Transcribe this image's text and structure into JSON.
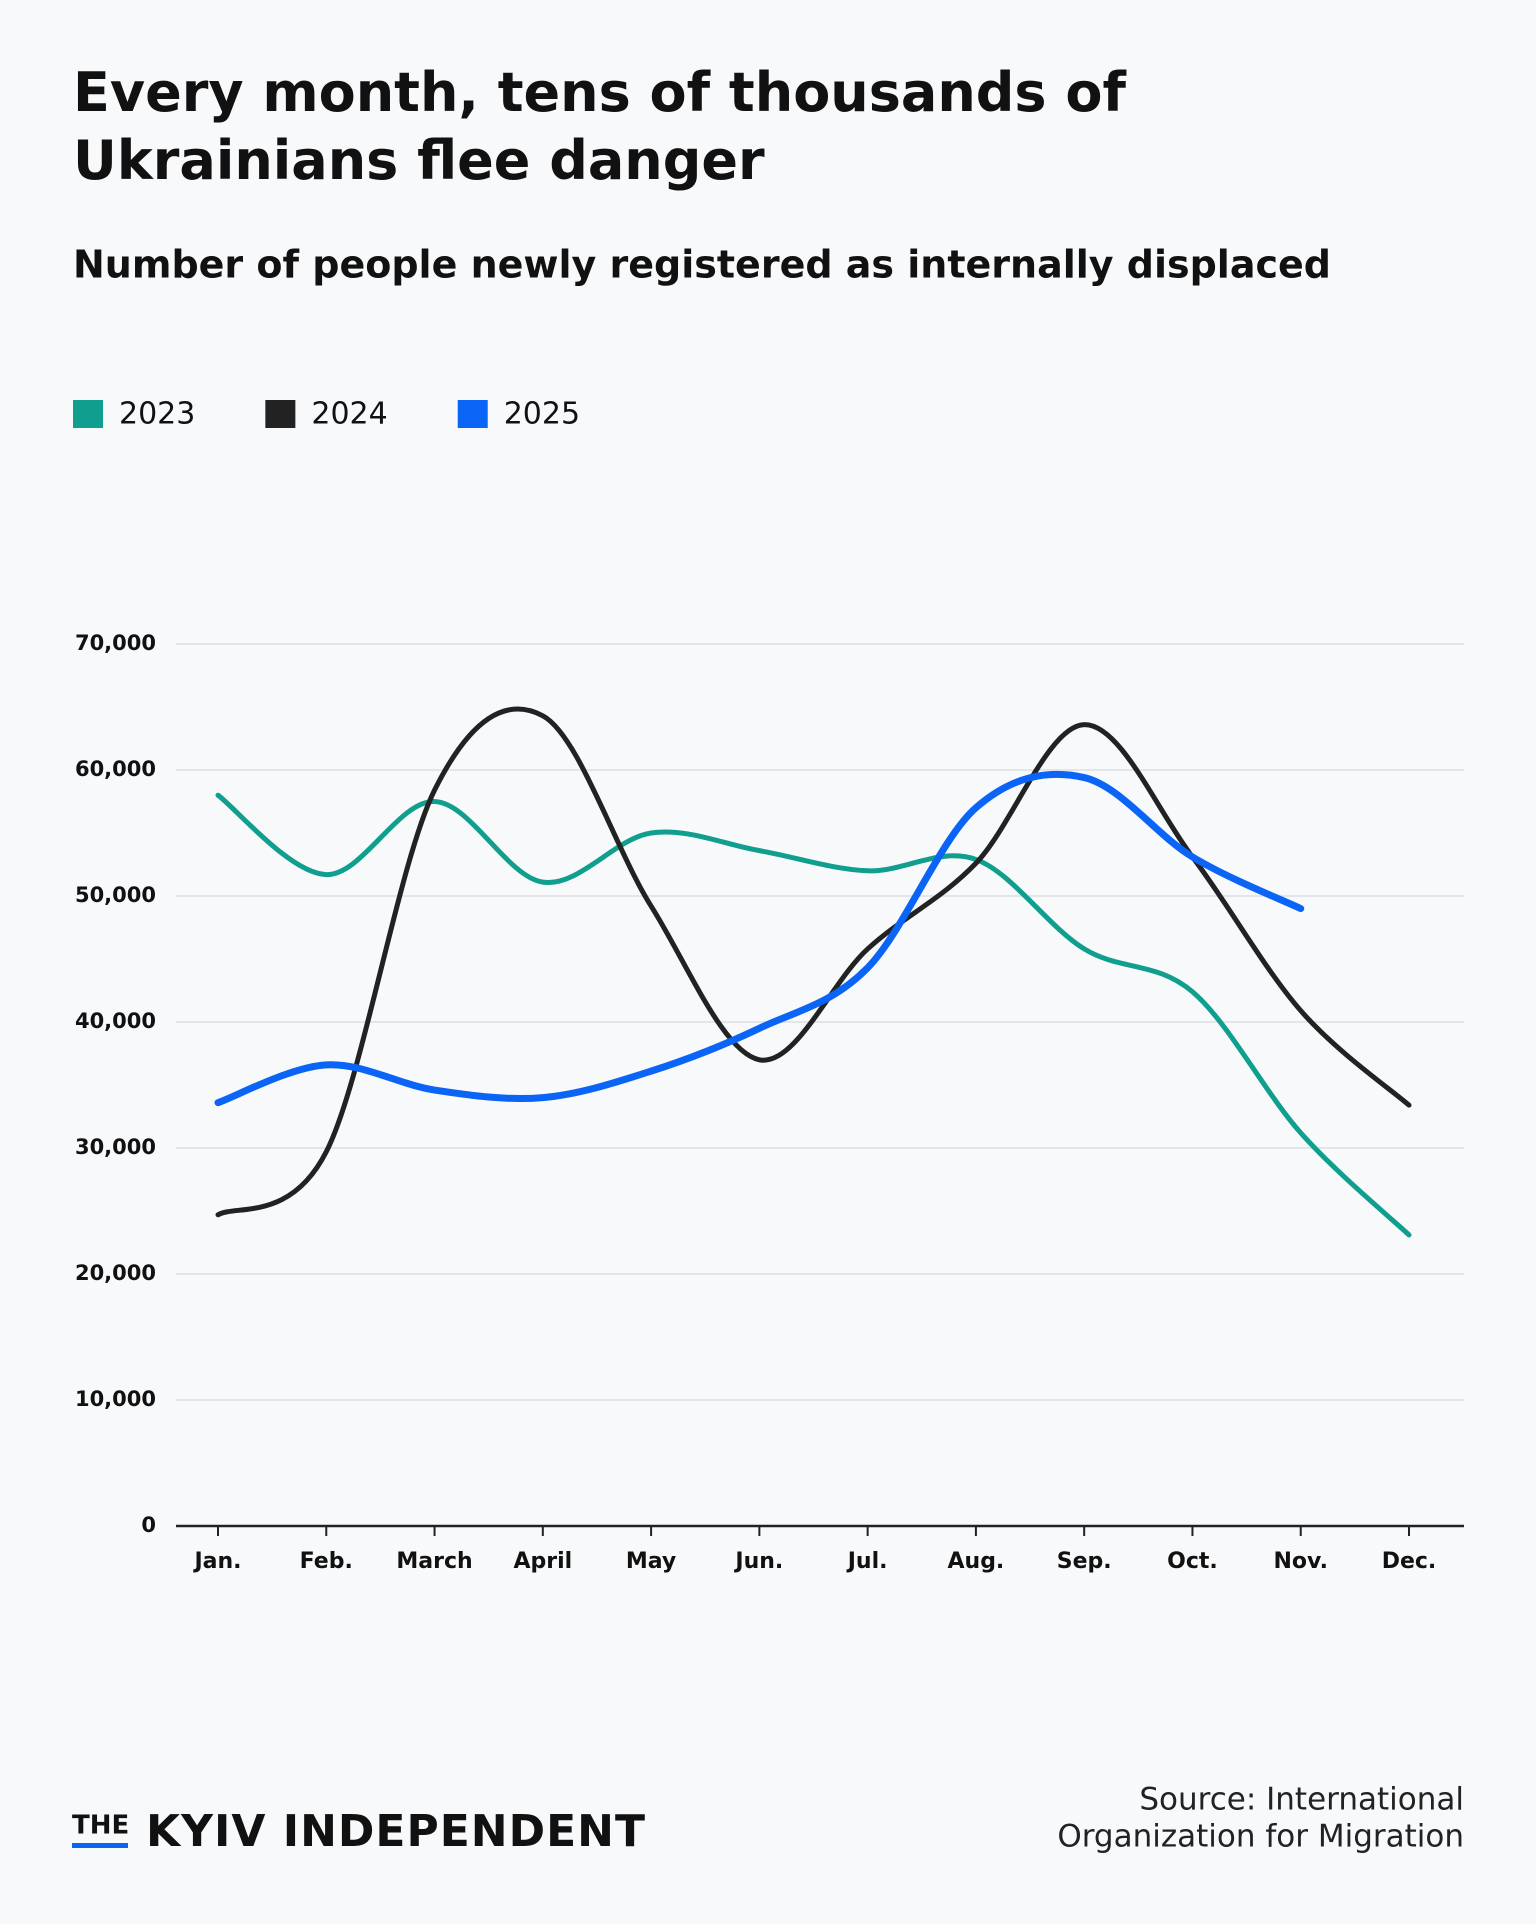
{
  "chart_data": {
    "type": "line",
    "title": "Every month, tens of thousands of Ukrainians flee danger",
    "subtitle": "Number of people newly registered as internally displaced",
    "categories": [
      "Jan.",
      "Feb.",
      "March",
      "April",
      "May",
      "Jun.",
      "Jul.",
      "Aug.",
      "Sep.",
      "Oct.",
      "Nov.",
      "Dec."
    ],
    "series": [
      {
        "name": "2023",
        "color": "#109e8e",
        "values": [
          58000,
          51700,
          57500,
          51100,
          55000,
          53600,
          52000,
          52900,
          45800,
          42400,
          31200,
          23100
        ]
      },
      {
        "name": "2024",
        "color": "#222222",
        "values": [
          24700,
          29700,
          58400,
          64300,
          49200,
          37000,
          45800,
          52600,
          63600,
          53100,
          40900,
          33400
        ]
      },
      {
        "name": "2025",
        "color": "#0a64f5",
        "values": [
          33600,
          36600,
          34600,
          34000,
          36100,
          39500,
          44300,
          57000,
          59400,
          53100,
          49000,
          null
        ]
      }
    ],
    "ylim": [
      0,
      70000
    ],
    "yticks": [
      0,
      {
        "value": 10000,
        "label": "10,000"
      },
      {
        "value": 20000,
        "label": "20,000"
      },
      {
        "value": 30000,
        "label": "30,000"
      },
      {
        "value": 40000,
        "label": "40,000"
      },
      {
        "value": 50000,
        "label": "50,000"
      },
      {
        "value": 60000,
        "label": "60,000"
      },
      {
        "value": 70000,
        "label": "70,000"
      }
    ],
    "grid": true,
    "legend": "top-left",
    "source": [
      "Source: International",
      "Organization for Migration"
    ],
    "brand": {
      "small": "THE",
      "large": "KYIV INDEPENDENT"
    }
  }
}
